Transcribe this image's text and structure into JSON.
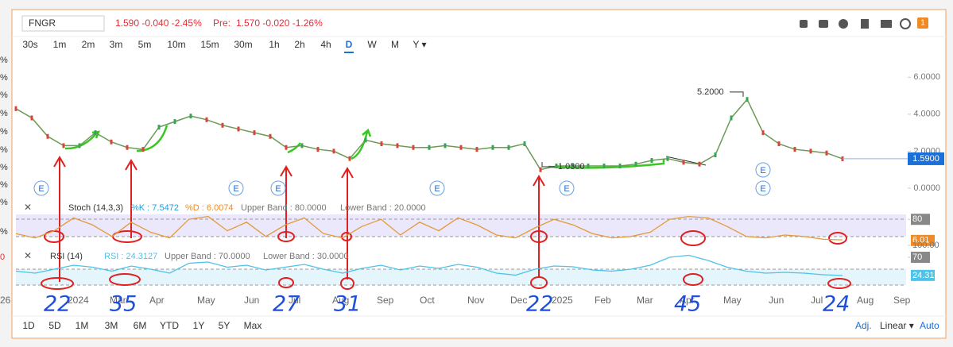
{
  "header": {
    "symbol": "FNGR",
    "quote": "1.590  -0.040  -2.45%",
    "pre_label": "Pre:",
    "pre_quote": "1.570  -0.020  -1.26%"
  },
  "left_strip": [
    "%",
    "%",
    "%",
    "%",
    "%",
    "%",
    "%",
    "%",
    "%",
    "%",
    "0"
  ],
  "intervals": [
    "30s",
    "1m",
    "2m",
    "3m",
    "5m",
    "10m",
    "15m",
    "30m",
    "1h",
    "2h",
    "4h",
    "D",
    "W",
    "M",
    "Y ▾"
  ],
  "active_interval": "D",
  "price": {
    "values": [
      4.3,
      3.8,
      2.8,
      2.3,
      2.3,
      3.0,
      2.5,
      2.2,
      2.1,
      3.3,
      3.6,
      3.9,
      3.7,
      3.4,
      3.2,
      3.0,
      2.8,
      2.2,
      2.3,
      2.1,
      2.0,
      1.6,
      2.6,
      2.4,
      2.3,
      2.2,
      2.2,
      2.3,
      2.2,
      2.1,
      2.2,
      2.2,
      2.4,
      1.0,
      1.2,
      1.2,
      1.2,
      1.2,
      1.2,
      1.3,
      1.5,
      1.6,
      1.4,
      1.3,
      1.8,
      3.8,
      4.8,
      3.0,
      2.4,
      2.1,
      2.0,
      1.9,
      1.59
    ],
    "ylim": [
      -0.56,
      7.17
    ],
    "yticks": [
      {
        "value": 0,
        "label": "0.0000"
      },
      {
        "value": 2,
        "label": "2.0000"
      },
      {
        "value": 4,
        "label": "4.0000"
      },
      {
        "value": 6,
        "label": "6.0000"
      }
    ],
    "last": {
      "value": 1.59,
      "label": "1.5900"
    },
    "high": {
      "value": 5.2,
      "label": "5.2000"
    },
    "low": {
      "value": 1.03,
      "label": "1.0300"
    },
    "event_label": "E"
  },
  "stoch": {
    "name": "Stoch (14,3,3)",
    "k": "%K : 7.5472",
    "d": "%D : 6.0074",
    "upper": "Upper Band : 80.0000",
    "lower": "Lower Band : 20.0000",
    "values": [
      30,
      15,
      40,
      85,
      60,
      20,
      70,
      35,
      15,
      80,
      90,
      40,
      70,
      20,
      60,
      85,
      30,
      15,
      55,
      80,
      25,
      70,
      40,
      85,
      60,
      25,
      15,
      50,
      80,
      60,
      30,
      15,
      20,
      35,
      80,
      90,
      85,
      55,
      20,
      15,
      25,
      20,
      10,
      8
    ],
    "ylim": [
      0,
      100
    ],
    "yticks": [
      80
    ],
    "last": {
      "value": 6.01,
      "label": "6.01"
    }
  },
  "rsi": {
    "name": "RSI (14)",
    "value_text": "RSI : 24.3127",
    "upper": "Upper Band : 70.0000",
    "lower": "Lower Band : 30.0000",
    "values": [
      35,
      30,
      40,
      50,
      45,
      35,
      48,
      40,
      30,
      55,
      58,
      45,
      50,
      38,
      45,
      52,
      40,
      30,
      42,
      50,
      38,
      48,
      42,
      52,
      45,
      30,
      25,
      40,
      48,
      46,
      38,
      35,
      40,
      50,
      70,
      75,
      62,
      45,
      35,
      30,
      32,
      30,
      26,
      24.31
    ],
    "ylim": [
      0,
      100
    ],
    "yticks": [
      {
        "value": 100,
        "label": "100.00"
      },
      70
    ],
    "last": {
      "value": 24.31,
      "label": "24.31"
    }
  },
  "x_labels": [
    "26",
    "2024",
    "Mar",
    "Apr",
    "May",
    "Jun",
    "Jul",
    "Aug",
    "Sep",
    "Oct",
    "Nov",
    "Dec",
    "2025",
    "Feb",
    "Mar",
    "Apr",
    "May",
    "Jun",
    "Jul",
    "Aug",
    "Sep"
  ],
  "ranges": [
    "1D",
    "5D",
    "1M",
    "3M",
    "6M",
    "YTD",
    "1Y",
    "5Y",
    "Max"
  ],
  "footer": {
    "adj": "Adj.",
    "scale": "Linear ▾",
    "auto": "Auto"
  },
  "notes": [
    "22",
    "35",
    "27",
    "31",
    "22",
    "45",
    "24"
  ],
  "badge": "1"
}
